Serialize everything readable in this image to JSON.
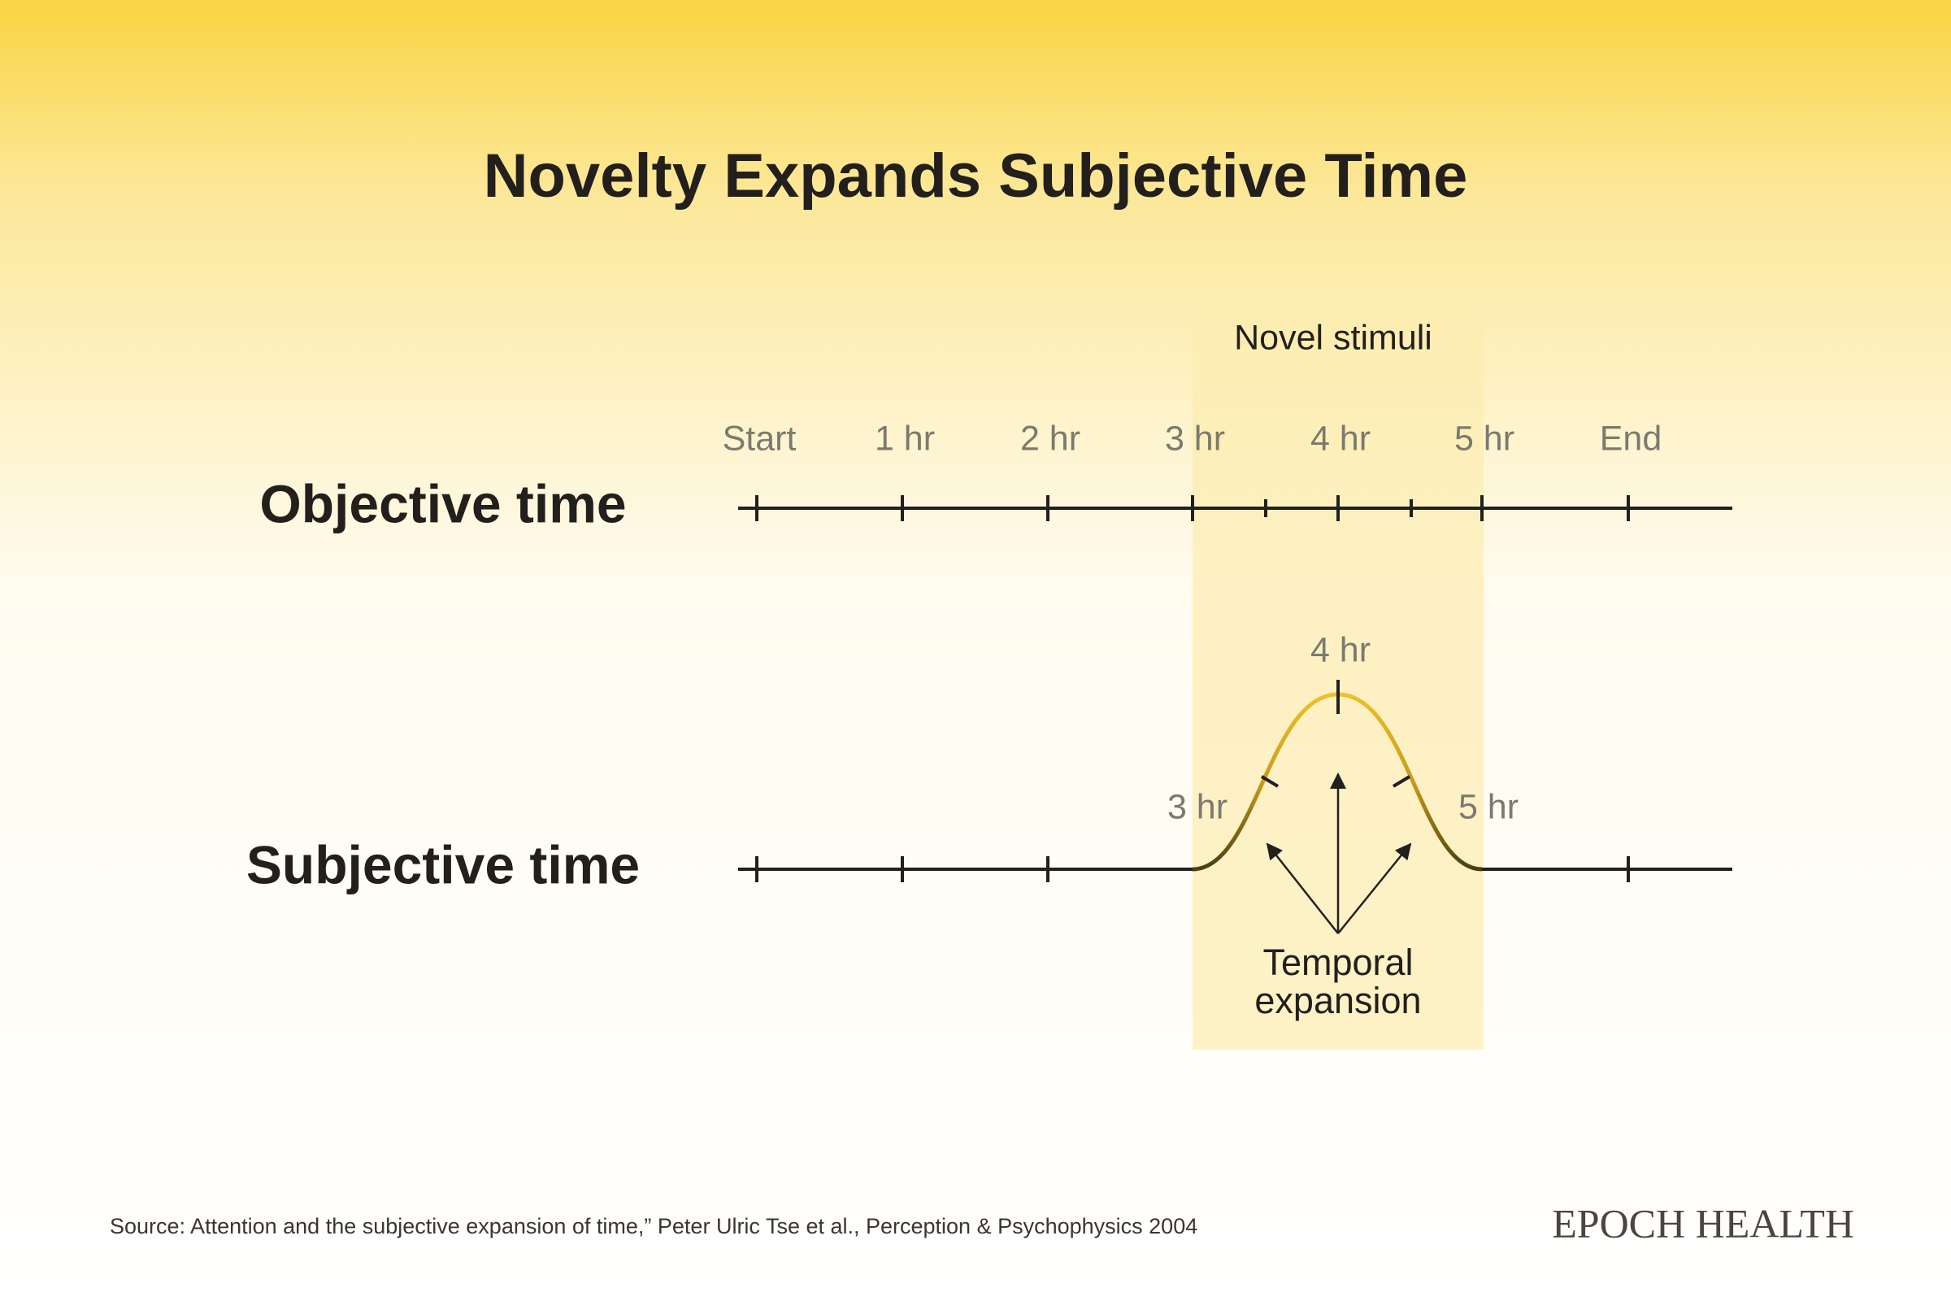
{
  "header": {
    "title": "Novelty Expands Subjective Time"
  },
  "band": {
    "label": "Novel stimuli"
  },
  "objective": {
    "label": "Objective time",
    "ticks": [
      "Start",
      "1 hr",
      "2 hr",
      "3 hr",
      "4 hr",
      "5 hr",
      "End"
    ]
  },
  "subjective": {
    "label": "Subjective time",
    "ticks": [
      "3 hr",
      "4 hr",
      "5 hr"
    ]
  },
  "annotation": {
    "lines": [
      "Temporal",
      "expansion"
    ]
  },
  "footer": {
    "source": "Source: Attention and the subjective expansion of time,” Peter Ulric Tse et al., Perception & Psychophysics 2004",
    "brand": "EPOCH HEALTH"
  }
}
